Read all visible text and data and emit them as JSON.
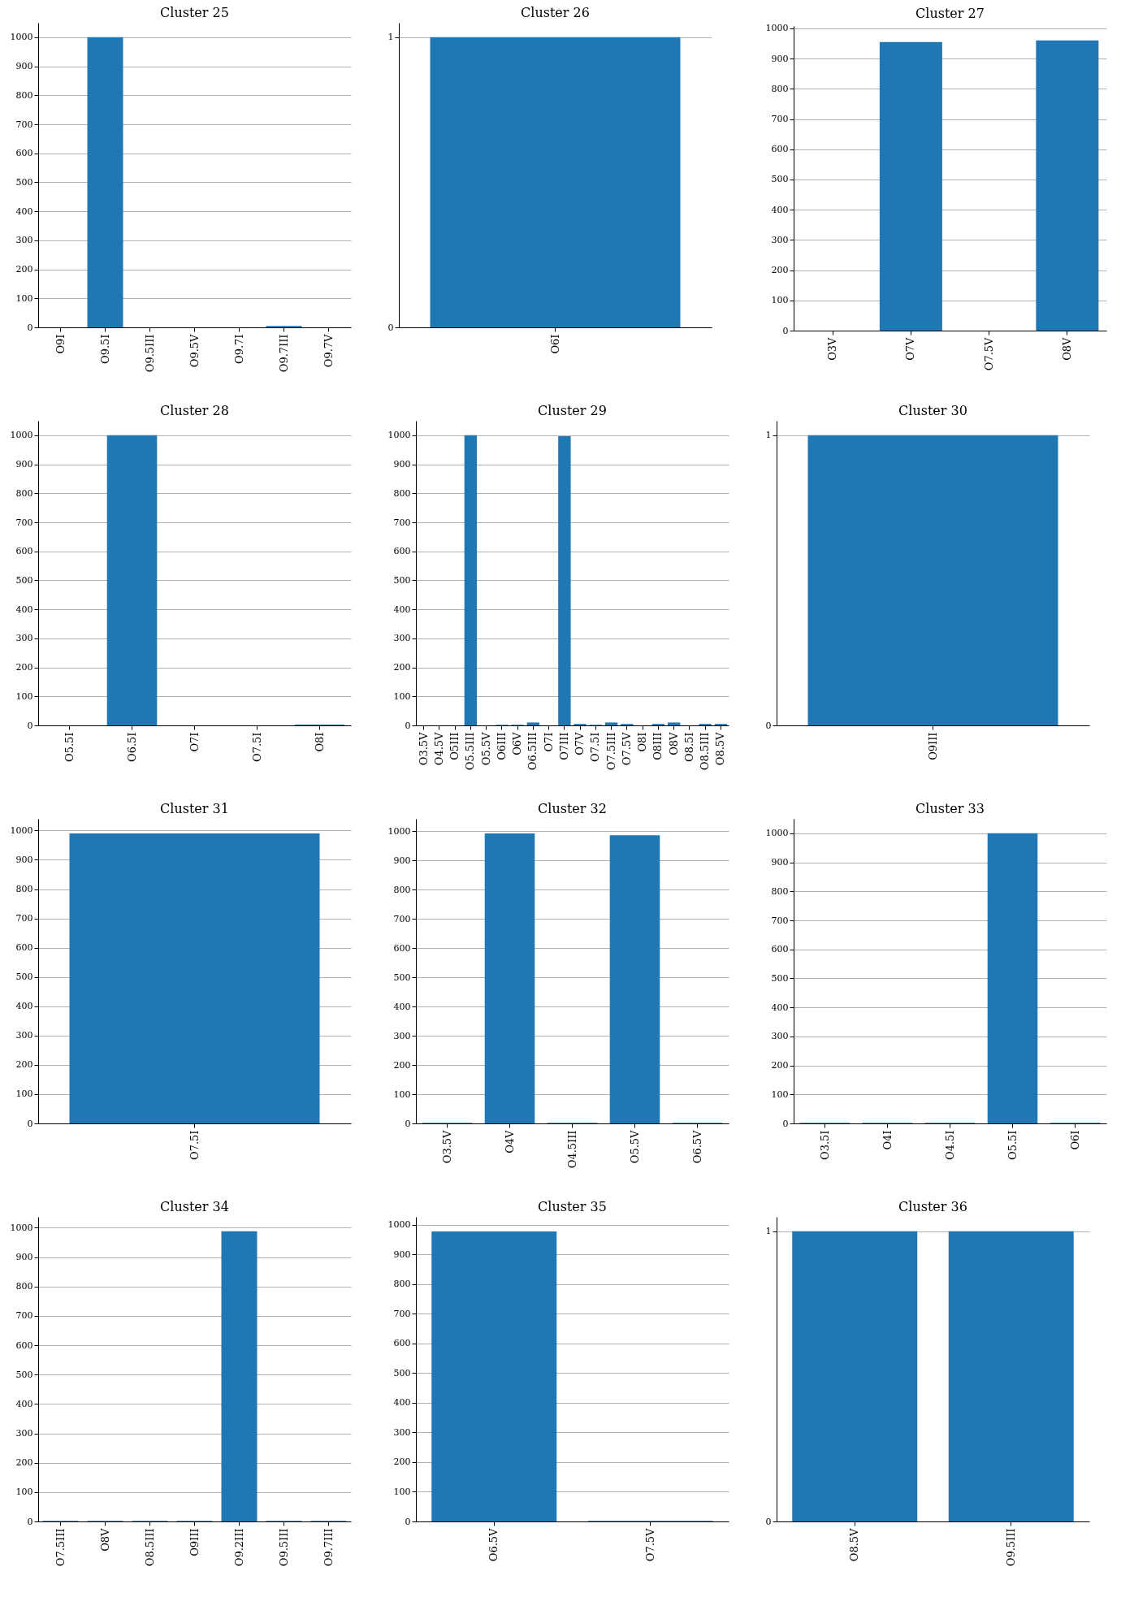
{
  "chart_data": [
    {
      "type": "bar",
      "title": "Cluster 25",
      "categories": [
        "O9I",
        "O9.5I",
        "O9.5III",
        "O9.5V",
        "O9.7I",
        "O9.7III",
        "O9.7V"
      ],
      "values": [
        0,
        1000,
        0,
        0,
        0,
        5,
        0
      ],
      "color": "#1f77b4",
      "ylim": [
        0,
        1050
      ],
      "yticks": [
        0,
        100,
        200,
        300,
        400,
        500,
        600,
        700,
        800,
        900,
        1000
      ],
      "grid": "y"
    },
    {
      "type": "bar",
      "title": "Cluster 26",
      "categories": [
        "O6I"
      ],
      "values": [
        1
      ],
      "color": "#1f77b4",
      "ylim": [
        0,
        1.05
      ],
      "yticks": [
        0,
        1
      ],
      "grid": "y"
    },
    {
      "type": "bar",
      "title": "Cluster 27",
      "categories": [
        "O3V",
        "O7V",
        "O7.5V",
        "O8V"
      ],
      "values": [
        0,
        955,
        0,
        960
      ],
      "color": "#1f77b4",
      "ylim": [
        0,
        1008
      ],
      "yticks": [
        0,
        100,
        200,
        300,
        400,
        500,
        600,
        700,
        800,
        900,
        1000
      ],
      "grid": "y"
    },
    {
      "type": "bar",
      "title": "Cluster 28",
      "categories": [
        "O5.5I",
        "O6.5I",
        "O7I",
        "O7.5I",
        "O8I"
      ],
      "values": [
        0,
        1000,
        0,
        0,
        3
      ],
      "color": "#1f77b4",
      "ylim": [
        0,
        1050
      ],
      "yticks": [
        0,
        100,
        200,
        300,
        400,
        500,
        600,
        700,
        800,
        900,
        1000
      ],
      "grid": "y"
    },
    {
      "type": "bar",
      "title": "Cluster 29",
      "categories": [
        "O3.5V",
        "O4.5V",
        "O5III",
        "O5.5III",
        "O5.5V",
        "O6III",
        "O6V",
        "O6.5III",
        "O7I",
        "O7III",
        "O7V",
        "O7.5I",
        "O7.5III",
        "O7.5V",
        "O8I",
        "O8III",
        "O8V",
        "O8.5I",
        "O8.5III",
        "O8.5V"
      ],
      "values": [
        0,
        0,
        0,
        1000,
        0,
        2,
        2,
        10,
        0,
        997,
        5,
        2,
        10,
        5,
        0,
        5,
        10,
        0,
        5,
        5
      ],
      "color": "#1f77b4",
      "ylim": [
        0,
        1050
      ],
      "yticks": [
        0,
        100,
        200,
        300,
        400,
        500,
        600,
        700,
        800,
        900,
        1000
      ],
      "grid": "y"
    },
    {
      "type": "bar",
      "title": "Cluster 30",
      "categories": [
        "O9III"
      ],
      "values": [
        1
      ],
      "color": "#1f77b4",
      "ylim": [
        0,
        1.05
      ],
      "yticks": [
        0,
        1
      ],
      "grid": "y"
    },
    {
      "type": "bar",
      "title": "Cluster 31",
      "categories": [
        "O7.5I"
      ],
      "values": [
        990
      ],
      "color": "#1f77b4",
      "ylim": [
        0,
        1040
      ],
      "yticks": [
        0,
        100,
        200,
        300,
        400,
        500,
        600,
        700,
        800,
        900,
        1000
      ],
      "grid": "y"
    },
    {
      "type": "bar",
      "title": "Cluster 32",
      "categories": [
        "O3.5V",
        "O4V",
        "O4.5III",
        "O5.5V",
        "O6.5V"
      ],
      "values": [
        2,
        993,
        2,
        987,
        2
      ],
      "color": "#1f77b4",
      "ylim": [
        0,
        1043
      ],
      "yticks": [
        0,
        100,
        200,
        300,
        400,
        500,
        600,
        700,
        800,
        900,
        1000
      ],
      "grid": "y"
    },
    {
      "type": "bar",
      "title": "Cluster 33",
      "categories": [
        "O3.5I",
        "O4I",
        "O4.5I",
        "O5.5I",
        "O6I"
      ],
      "values": [
        2,
        2,
        2,
        1000,
        2
      ],
      "color": "#1f77b4",
      "ylim": [
        0,
        1050
      ],
      "yticks": [
        0,
        100,
        200,
        300,
        400,
        500,
        600,
        700,
        800,
        900,
        1000
      ],
      "grid": "y"
    },
    {
      "type": "bar",
      "title": "Cluster 34",
      "categories": [
        "O7.5III",
        "O8V",
        "O8.5III",
        "O9III",
        "O9.2III",
        "O9.5III",
        "O9.7III"
      ],
      "values": [
        2,
        2,
        2,
        2,
        988,
        2,
        2
      ],
      "color": "#1f77b4",
      "ylim": [
        0,
        1037
      ],
      "yticks": [
        0,
        100,
        200,
        300,
        400,
        500,
        600,
        700,
        800,
        900,
        1000
      ],
      "grid": "y"
    },
    {
      "type": "bar",
      "title": "Cluster 35",
      "categories": [
        "O6.5V",
        "O7.5V"
      ],
      "values": [
        977,
        2
      ],
      "color": "#1f77b4",
      "ylim": [
        0,
        1026
      ],
      "yticks": [
        0,
        100,
        200,
        300,
        400,
        500,
        600,
        700,
        800,
        900,
        1000
      ],
      "grid": "y"
    },
    {
      "type": "bar",
      "title": "Cluster 36",
      "categories": [
        "O8.5V",
        "O9.5III"
      ],
      "values": [
        1,
        1
      ],
      "color": "#1f77b4",
      "ylim": [
        0,
        1.05
      ],
      "yticks": [
        0,
        1
      ],
      "grid": "y"
    }
  ]
}
